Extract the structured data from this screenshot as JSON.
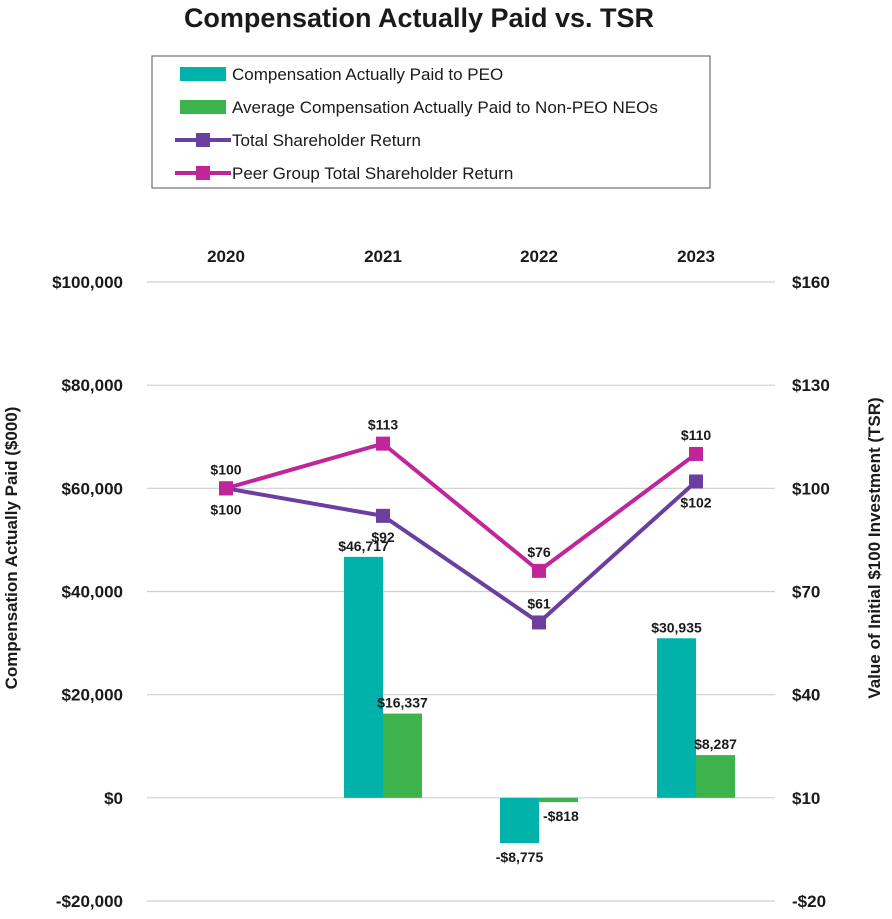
{
  "chart_data": {
    "type": "bar",
    "title": "Compensation Actually Paid vs. TSR",
    "categories": [
      "2020",
      "2021",
      "2022",
      "2023"
    ],
    "ylabel": "Compensation Actually Paid ($000)",
    "y2label": "Value of Initial $100 Investment (TSR)",
    "ylim": [
      -20000,
      100000
    ],
    "y2lim": [
      -20,
      160
    ],
    "y_ticks": [
      100000,
      80000,
      60000,
      40000,
      20000,
      0,
      -20000
    ],
    "y_tick_labels": [
      "$100,000",
      "$80,000",
      "$60,000",
      "$40,000",
      "$20,000",
      "$0",
      "-$20,000"
    ],
    "y2_ticks": [
      160,
      130,
      100,
      70,
      40,
      10,
      -20
    ],
    "y2_tick_labels": [
      "$160",
      "$130",
      "$100",
      "$70",
      "$40",
      "$10",
      "-$20"
    ],
    "legend_position": "top",
    "series": [
      {
        "name": "Compensation Actually Paid to PEO",
        "kind": "bar",
        "axis": "left",
        "color": "#00b2a9",
        "values": [
          null,
          46717,
          -8775,
          30935
        ],
        "labels": [
          "",
          "$46,717",
          "-$8,775",
          "$30,935"
        ]
      },
      {
        "name": "Average Compensation Actually Paid to Non-PEO NEOs",
        "kind": "bar",
        "axis": "left",
        "color": "#3cb44b",
        "values": [
          null,
          16337,
          -818,
          8287
        ],
        "labels": [
          "",
          "$16,337",
          "-$818",
          "$8,287"
        ]
      },
      {
        "name": "Total Shareholder Return",
        "kind": "line",
        "axis": "right",
        "color": "#6a3fa0",
        "values": [
          100,
          92,
          61,
          102
        ],
        "labels": [
          "$100",
          "$92",
          "$61",
          "$102"
        ]
      },
      {
        "name": "Peer Group Total Shareholder Return",
        "kind": "line",
        "axis": "right",
        "color": "#c0259a",
        "values": [
          100,
          113,
          76,
          110
        ],
        "labels": [
          "$100",
          "$113",
          "$76",
          "$110"
        ]
      }
    ]
  }
}
